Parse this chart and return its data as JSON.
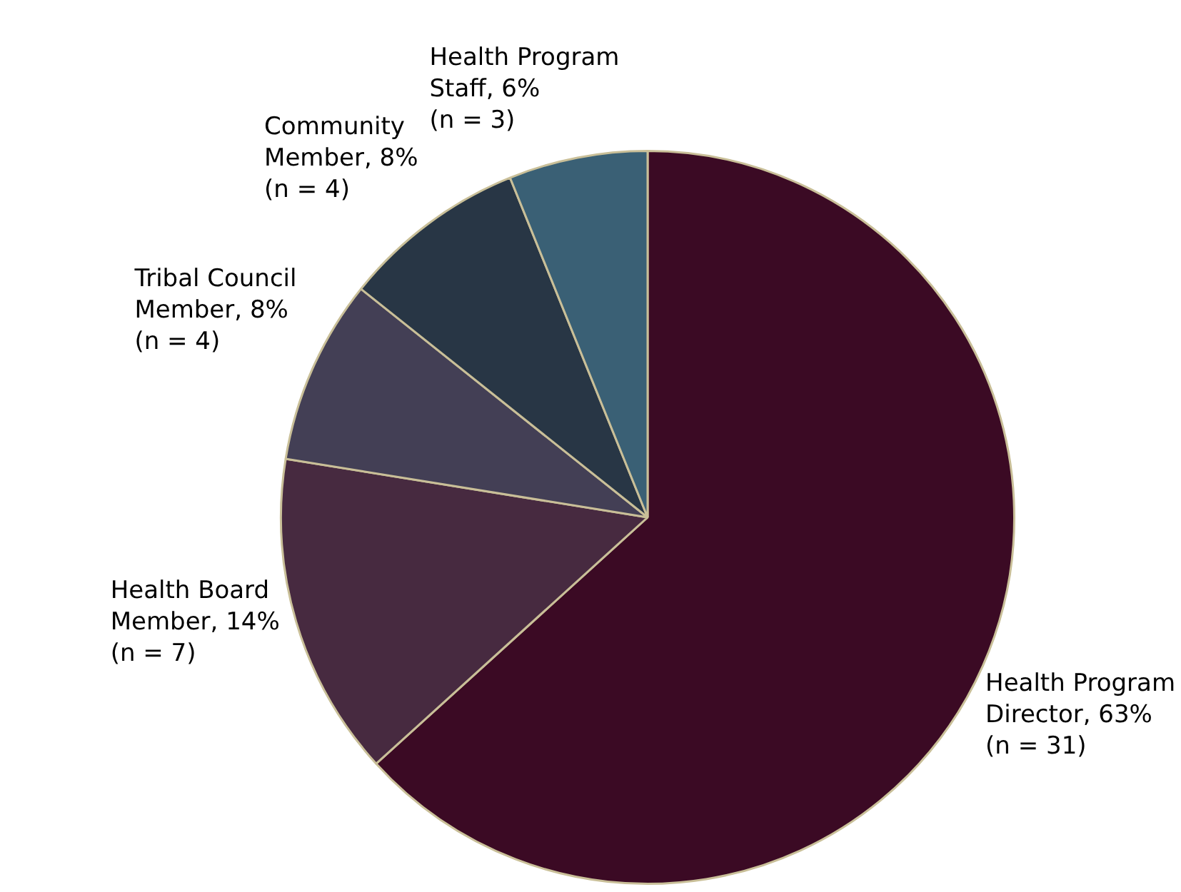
{
  "chart_data": {
    "type": "pie",
    "categories": [
      "Health Program Director",
      "Health Board Member",
      "Tribal Council Member",
      "Community Member",
      "Health Program Staff"
    ],
    "values": [
      31,
      7,
      4,
      4,
      3
    ],
    "value_labels": [
      "63% (n = 31)",
      "14% (n = 7)",
      "8% (n = 4)",
      "8% (n = 4)",
      "6% (n = 3)"
    ],
    "colors": [
      "#3b0a24",
      "#472a40",
      "#433f55",
      "#283645",
      "#3a6075"
    ],
    "legend": false
  }
}
